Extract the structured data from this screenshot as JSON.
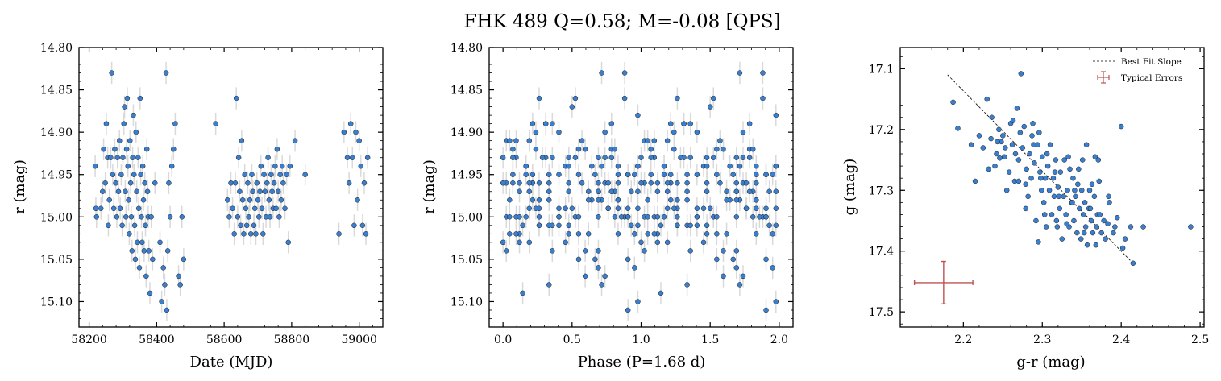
{
  "figure": {
    "title": "FHK 489  Q=0.58; M=-0.08 [QPS]"
  },
  "style": {
    "point_fill": "#3a7fcf",
    "point_edge": "#1a1a1a",
    "errorbar_color": "#d9d9d9",
    "fit_line_color": "#000000",
    "typical_error_color": "#c0504d"
  },
  "chart_data": [
    {
      "type": "scatter",
      "xlabel": "Date (MJD)",
      "ylabel": "r (mag)",
      "xlim": [
        58170,
        59070
      ],
      "ylim": [
        15.13,
        14.8
      ],
      "y_inverted": true,
      "xticks": [
        58200,
        58400,
        58600,
        58800,
        59000
      ],
      "xtick_labels": [
        "58200",
        "58400",
        "58600",
        "58800",
        "59000"
      ],
      "yticks": [
        14.8,
        14.85,
        14.9,
        14.95,
        15.0,
        15.05,
        15.1
      ],
      "ytick_labels": [
        "14.80",
        "14.85",
        "14.90",
        "14.95",
        "15.00",
        "15.05",
        "15.10"
      ],
      "points": [
        [
          58218,
          14.94
        ],
        [
          58220,
          14.99
        ],
        [
          58222,
          15.0
        ],
        [
          58235,
          14.99
        ],
        [
          58240,
          14.97
        ],
        [
          58243,
          14.92
        ],
        [
          58248,
          14.96
        ],
        [
          58251,
          14.89
        ],
        [
          58255,
          14.93
        ],
        [
          58257,
          15.01
        ],
        [
          58260,
          14.98
        ],
        [
          58264,
          14.93
        ],
        [
          58267,
          14.83
        ],
        [
          58270,
          14.95
        ],
        [
          58273,
          14.99
        ],
        [
          58276,
          14.92
        ],
        [
          58279,
          14.96
        ],
        [
          58282,
          15.0
        ],
        [
          58284,
          14.93
        ],
        [
          58287,
          14.97
        ],
        [
          58290,
          14.91
        ],
        [
          58292,
          14.99
        ],
        [
          58295,
          14.95
        ],
        [
          58298,
          15.01
        ],
        [
          58300,
          14.93
        ],
        [
          58303,
          14.89
        ],
        [
          58305,
          14.87
        ],
        [
          58307,
          14.97
        ],
        [
          58309,
          15.0
        ],
        [
          58311,
          14.92
        ],
        [
          58313,
          14.86
        ],
        [
          58315,
          14.94
        ],
        [
          58317,
          14.98
        ],
        [
          58319,
          15.02
        ],
        [
          58321,
          14.91
        ],
        [
          58323,
          14.96
        ],
        [
          58325,
          15.0
        ],
        [
          58327,
          15.04
        ],
        [
          58329,
          14.93
        ],
        [
          58331,
          14.88
        ],
        [
          58333,
          14.95
        ],
        [
          58335,
          15.01
        ],
        [
          58337,
          15.05
        ],
        [
          58339,
          14.9
        ],
        [
          58341,
          14.97
        ],
        [
          58343,
          15.03
        ],
        [
          58345,
          14.93
        ],
        [
          58347,
          14.99
        ],
        [
          58349,
          15.06
        ],
        [
          58351,
          14.86
        ],
        [
          58353,
          14.95
        ],
        [
          58355,
          15.0
        ],
        [
          58357,
          15.03
        ],
        [
          58359,
          14.94
        ],
        [
          58361,
          14.98
        ],
        [
          58363,
          15.04
        ],
        [
          58365,
          14.96
        ],
        [
          58367,
          15.01
        ],
        [
          58369,
          15.07
        ],
        [
          58371,
          14.92
        ],
        [
          58373,
          14.97
        ],
        [
          58375,
          15.0
        ],
        [
          58377,
          15.04
        ],
        [
          58380,
          15.09
        ],
        [
          58384,
          15.0
        ],
        [
          58388,
          15.05
        ],
        [
          58395,
          14.96
        ],
        [
          58410,
          15.03
        ],
        [
          58415,
          15.1
        ],
        [
          58420,
          15.06
        ],
        [
          58424,
          15.08
        ],
        [
          58428,
          14.83
        ],
        [
          58430,
          15.11
        ],
        [
          58433,
          15.04
        ],
        [
          58436,
          14.96
        ],
        [
          58440,
          15.0
        ],
        [
          58445,
          14.94
        ],
        [
          58450,
          14.92
        ],
        [
          58455,
          14.89
        ],
        [
          58465,
          15.07
        ],
        [
          58470,
          15.08
        ],
        [
          58475,
          15.0
        ],
        [
          58480,
          15.05
        ],
        [
          58575,
          14.89
        ],
        [
          58610,
          14.98
        ],
        [
          58615,
          15.0
        ],
        [
          58620,
          14.96
        ],
        [
          58625,
          14.99
        ],
        [
          58630,
          15.02
        ],
        [
          58633,
          14.96
        ],
        [
          58636,
          14.86
        ],
        [
          58640,
          15.0
        ],
        [
          58643,
          14.93
        ],
        [
          58646,
          14.97
        ],
        [
          58649,
          15.01
        ],
        [
          58652,
          14.91
        ],
        [
          58655,
          14.98
        ],
        [
          58658,
          15.02
        ],
        [
          58661,
          14.95
        ],
        [
          58664,
          14.99
        ],
        [
          58667,
          15.01
        ],
        [
          58670,
          14.96
        ],
        [
          58673,
          15.0
        ],
        [
          58676,
          14.98
        ],
        [
          58679,
          15.02
        ],
        [
          58682,
          14.95
        ],
        [
          58685,
          14.97
        ],
        [
          58688,
          15.01
        ],
        [
          58691,
          14.99
        ],
        [
          58694,
          15.02
        ],
        [
          58697,
          14.96
        ],
        [
          58700,
          14.98
        ],
        [
          58703,
          15.0
        ],
        [
          58706,
          14.97
        ],
        [
          58709,
          14.94
        ],
        [
          58712,
          14.99
        ],
        [
          58715,
          15.02
        ],
        [
          58718,
          14.95
        ],
        [
          58721,
          14.97
        ],
        [
          58724,
          15.0
        ],
        [
          58727,
          14.96
        ],
        [
          58730,
          14.93
        ],
        [
          58733,
          14.98
        ],
        [
          58736,
          15.0
        ],
        [
          58739,
          14.95
        ],
        [
          58742,
          14.97
        ],
        [
          58745,
          14.99
        ],
        [
          58748,
          14.96
        ],
        [
          58751,
          14.94
        ],
        [
          58754,
          14.99
        ],
        [
          58757,
          14.92
        ],
        [
          58760,
          14.97
        ],
        [
          58763,
          15.0
        ],
        [
          58766,
          14.95
        ],
        [
          58769,
          14.98
        ],
        [
          58772,
          14.94
        ],
        [
          58775,
          14.96
        ],
        [
          58780,
          14.99
        ],
        [
          58785,
          14.95
        ],
        [
          58790,
          15.03
        ],
        [
          58795,
          14.94
        ],
        [
          58810,
          14.91
        ],
        [
          58840,
          14.95
        ],
        [
          58940,
          15.02
        ],
        [
          58955,
          14.9
        ],
        [
          58965,
          14.93
        ],
        [
          58970,
          14.96
        ],
        [
          58975,
          14.89
        ],
        [
          58980,
          14.93
        ],
        [
          58985,
          15.01
        ],
        [
          58990,
          14.9
        ],
        [
          58995,
          14.98
        ],
        [
          59000,
          14.91
        ],
        [
          59005,
          14.94
        ],
        [
          59010,
          15.01
        ],
        [
          59015,
          14.96
        ],
        [
          59020,
          15.02
        ],
        [
          59025,
          14.93
        ]
      ]
    },
    {
      "type": "scatter",
      "xlabel": "Phase (P=1.68 d)",
      "ylabel": "r (mag)",
      "xlim": [
        -0.1,
        2.1
      ],
      "ylim": [
        15.13,
        14.8
      ],
      "y_inverted": true,
      "xticks": [
        0.0,
        0.5,
        1.0,
        1.5,
        2.0
      ],
      "xtick_labels": [
        "0.0",
        "0.5",
        "1.0",
        "1.5",
        "2.0"
      ],
      "yticks": [
        14.8,
        14.85,
        14.9,
        14.95,
        15.0,
        15.05,
        15.1
      ],
      "ytick_labels": [
        "14.80",
        "14.85",
        "14.90",
        "14.95",
        "15.00",
        "15.05",
        "15.10"
      ],
      "phase_folded_period_days": 1.68,
      "mjd_epoch": 58200,
      "points_source": "chart_data.0.points",
      "repeat_offset": 1.0
    },
    {
      "type": "scatter",
      "xlabel": "g-r (mag)",
      "ylabel": "g (mag)",
      "xlim": [
        2.12,
        2.505
      ],
      "ylim": [
        17.525,
        17.065
      ],
      "y_inverted": true,
      "xticks": [
        2.2,
        2.3,
        2.4,
        2.5
      ],
      "xtick_labels": [
        "2.2",
        "2.3",
        "2.4",
        "2.5"
      ],
      "yticks": [
        17.1,
        17.2,
        17.3,
        17.4,
        17.5
      ],
      "ytick_labels": [
        "17.1",
        "17.2",
        "17.3",
        "17.4",
        "17.5"
      ],
      "legend": {
        "placement": "top-right",
        "entries": [
          "Best Fit Slope",
          "Typical Errors"
        ]
      },
      "best_fit_line": [
        [
          2.18,
          17.11
        ],
        [
          2.415,
          17.42
        ]
      ],
      "typical_error": {
        "x": 2.175,
        "y": 17.452,
        "xerr": 0.037,
        "yerr": 0.035
      },
      "points": [
        [
          2.187,
          17.155
        ],
        [
          2.193,
          17.198
        ],
        [
          2.21,
          17.225
        ],
        [
          2.215,
          17.285
        ],
        [
          2.22,
          17.21
        ],
        [
          2.225,
          17.23
        ],
        [
          2.23,
          17.15
        ],
        [
          2.232,
          17.265
        ],
        [
          2.235,
          17.215
        ],
        [
          2.24,
          17.26
        ],
        [
          2.242,
          17.24
        ],
        [
          2.245,
          17.2
        ],
        [
          2.248,
          17.22
        ],
        [
          2.25,
          17.21
        ],
        [
          2.252,
          17.245
        ],
        [
          2.255,
          17.3
        ],
        [
          2.258,
          17.27
        ],
        [
          2.26,
          17.19
        ],
        [
          2.262,
          17.225
        ],
        [
          2.265,
          17.285
        ],
        [
          2.268,
          17.165
        ],
        [
          2.27,
          17.25
        ],
        [
          2.272,
          17.205
        ],
        [
          2.273,
          17.108
        ],
        [
          2.275,
          17.23
        ],
        [
          2.277,
          17.195
        ],
        [
          2.28,
          17.265
        ],
        [
          2.282,
          17.31
        ],
        [
          2.284,
          17.24
        ],
        [
          2.286,
          17.28
        ],
        [
          2.288,
          17.19
        ],
        [
          2.29,
          17.255
        ],
        [
          2.292,
          17.35
        ],
        [
          2.294,
          17.225
        ],
        [
          2.295,
          17.385
        ],
        [
          2.297,
          17.27
        ],
        [
          2.299,
          17.3
        ],
        [
          2.3,
          17.245
        ],
        [
          2.302,
          17.32
        ],
        [
          2.304,
          17.28
        ],
        [
          2.305,
          17.36
        ],
        [
          2.307,
          17.26
        ],
        [
          2.309,
          17.3
        ],
        [
          2.31,
          17.225
        ],
        [
          2.312,
          17.34
        ],
        [
          2.314,
          17.28
        ],
        [
          2.315,
          17.31
        ],
        [
          2.317,
          17.25
        ],
        [
          2.319,
          17.36
        ],
        [
          2.32,
          17.295
        ],
        [
          2.322,
          17.33
        ],
        [
          2.323,
          17.27
        ],
        [
          2.325,
          17.38
        ],
        [
          2.327,
          17.31
        ],
        [
          2.328,
          17.25
        ],
        [
          2.33,
          17.34
        ],
        [
          2.332,
          17.3
        ],
        [
          2.334,
          17.36
        ],
        [
          2.335,
          17.265
        ],
        [
          2.337,
          17.32
        ],
        [
          2.339,
          17.28
        ],
        [
          2.34,
          17.35
        ],
        [
          2.342,
          17.31
        ],
        [
          2.344,
          17.37
        ],
        [
          2.345,
          17.29
        ],
        [
          2.347,
          17.33
        ],
        [
          2.349,
          17.38
        ],
        [
          2.35,
          17.3
        ],
        [
          2.352,
          17.34
        ],
        [
          2.354,
          17.32
        ],
        [
          2.355,
          17.36
        ],
        [
          2.357,
          17.39
        ],
        [
          2.359,
          17.33
        ],
        [
          2.36,
          17.3
        ],
        [
          2.362,
          17.35
        ],
        [
          2.364,
          17.37
        ],
        [
          2.366,
          17.31
        ],
        [
          2.368,
          17.39
        ],
        [
          2.37,
          17.34
        ],
        [
          2.372,
          17.285
        ],
        [
          2.375,
          17.37
        ],
        [
          2.378,
          17.35
        ],
        [
          2.38,
          17.38
        ],
        [
          2.385,
          17.32
        ],
        [
          2.39,
          17.37
        ],
        [
          2.395,
          17.345
        ],
        [
          2.4,
          17.195
        ],
        [
          2.405,
          17.38
        ],
        [
          2.412,
          17.36
        ],
        [
          2.415,
          17.42
        ],
        [
          2.428,
          17.36
        ],
        [
          2.488,
          17.36
        ],
        [
          2.236,
          17.18
        ],
        [
          2.243,
          17.22
        ],
        [
          2.246,
          17.247
        ],
        [
          2.263,
          17.185
        ],
        [
          2.287,
          17.21
        ],
        [
          2.296,
          17.205
        ],
        [
          2.306,
          17.24
        ],
        [
          2.316,
          17.27
        ],
        [
          2.333,
          17.245
        ],
        [
          2.346,
          17.265
        ],
        [
          2.361,
          17.33
        ],
        [
          2.373,
          17.34
        ],
        [
          2.383,
          17.355
        ],
        [
          2.392,
          17.36
        ],
        [
          2.402,
          17.395
        ],
        [
          2.356,
          17.225
        ],
        [
          2.367,
          17.245
        ],
        [
          2.318,
          17.35
        ],
        [
          2.303,
          17.34
        ],
        [
          2.279,
          17.33
        ],
        [
          2.27,
          17.285
        ],
        [
          2.289,
          17.225
        ],
        [
          2.331,
          17.355
        ],
        [
          2.341,
          17.3
        ],
        [
          2.351,
          17.25
        ],
        [
          2.363,
          17.29
        ],
        [
          2.371,
          17.25
        ],
        [
          2.384,
          17.31
        ],
        [
          2.253,
          17.23
        ],
        [
          2.266,
          17.24
        ],
        [
          2.279,
          17.29
        ],
        [
          2.298,
          17.28
        ],
        [
          2.321,
          17.31
        ],
        [
          2.338,
          17.32
        ],
        [
          2.353,
          17.37
        ],
        [
          2.369,
          17.36
        ]
      ]
    }
  ]
}
